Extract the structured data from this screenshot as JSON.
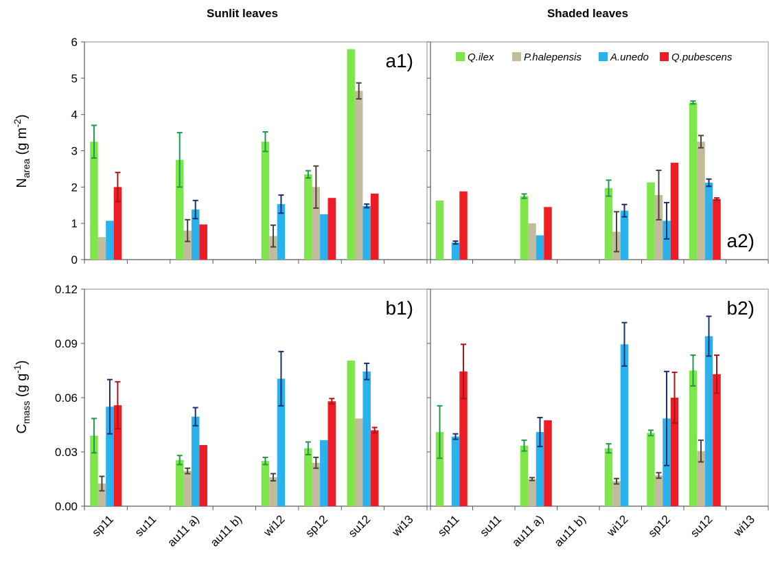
{
  "chart_data": {
    "type": "bar",
    "column_titles": [
      "Sunlit leaves",
      "Shaded leaves"
    ],
    "categories": [
      "sp11",
      "su11",
      "au11 a)",
      "au11 b)",
      "wi12",
      "sp12",
      "su12",
      "wi13"
    ],
    "legend": {
      "placement": "top-right of panel a2",
      "entries": [
        "Q.ilex",
        "P.halepensis",
        "A.unedo",
        "Q.pubescens"
      ]
    },
    "colors": {
      "Q.ilex": "#7ee64a",
      "P.halepensis": "#c2bc9c",
      "A.unedo": "#2ab2ec",
      "Q.pubescens": "#ee1c24",
      "Q.ilex_err": "#1a9a4a",
      "P.halepensis_err": "#4a4438",
      "A.unedo_err": "#1a2f6e",
      "Q.pubescens_err": "#b01018"
    },
    "rows": [
      {
        "ylabel": {
          "base": "N",
          "sub": "area",
          "unit_pre": " (g m",
          "sup": "-2",
          "unit_post": ")"
        },
        "ylim": [
          0,
          6
        ],
        "yticks": [
          "0",
          "1",
          "2",
          "3",
          "4",
          "5",
          "6"
        ],
        "panels": [
          {
            "label": "a1)",
            "label_pos": "top-right",
            "series": [
              {
                "name": "Q.ilex",
                "values": [
                  3.25,
                  null,
                  2.75,
                  null,
                  3.25,
                  2.35,
                  5.8,
                  null
                ],
                "err": [
                  0.45,
                  null,
                  0.75,
                  null,
                  0.27,
                  0.1,
                  0,
                  null
                ]
              },
              {
                "name": "P.halepensis",
                "values": [
                  0.62,
                  null,
                  0.8,
                  null,
                  0.65,
                  2.0,
                  4.65,
                  null
                ],
                "err": [
                  0,
                  null,
                  0.3,
                  null,
                  0.3,
                  0.58,
                  0.22,
                  null
                ]
              },
              {
                "name": "A.unedo",
                "values": [
                  1.07,
                  null,
                  1.38,
                  null,
                  1.53,
                  1.25,
                  1.48,
                  null
                ],
                "err": [
                  0,
                  null,
                  0.25,
                  null,
                  0.25,
                  0,
                  0.05,
                  null
                ]
              },
              {
                "name": "Q.pubescens",
                "values": [
                  2.0,
                  null,
                  0.97,
                  null,
                  null,
                  1.7,
                  1.82,
                  null
                ],
                "err": [
                  0.4,
                  null,
                  0,
                  null,
                  null,
                  0,
                  0,
                  null
                ]
              }
            ]
          },
          {
            "label": "a2)",
            "label_pos": "bottom-right",
            "series": [
              {
                "name": "Q.ilex",
                "values": [
                  1.63,
                  null,
                  1.75,
                  null,
                  1.97,
                  2.13,
                  4.33,
                  null
                ],
                "err": [
                  0,
                  null,
                  0.06,
                  null,
                  0.22,
                  0,
                  0.04,
                  null
                ]
              },
              {
                "name": "P.halepensis",
                "values": [
                  null,
                  null,
                  1.0,
                  null,
                  0.77,
                  1.78,
                  3.25,
                  null
                ],
                "err": [
                  null,
                  null,
                  0,
                  null,
                  0.55,
                  0.68,
                  0.17,
                  null
                ]
              },
              {
                "name": "A.unedo",
                "values": [
                  0.47,
                  null,
                  0.67,
                  null,
                  1.35,
                  1.07,
                  2.12,
                  null
                ],
                "err": [
                  0.04,
                  null,
                  0,
                  null,
                  0.17,
                  0.5,
                  0.1,
                  null
                ]
              },
              {
                "name": "Q.pubescens",
                "values": [
                  1.88,
                  null,
                  1.45,
                  null,
                  null,
                  2.67,
                  1.67,
                  null
                ],
                "err": [
                  0,
                  null,
                  0,
                  null,
                  null,
                  0,
                  0.03,
                  null
                ]
              }
            ]
          }
        ]
      },
      {
        "ylabel": {
          "base": "C",
          "sub": "mass",
          "unit_pre": " (g g",
          "sup": "-1",
          "unit_post": ")"
        },
        "ylim": [
          0,
          0.12
        ],
        "yticks": [
          "0.00",
          "0.03",
          "0.06",
          "0.09",
          "0.12"
        ],
        "panels": [
          {
            "label": "b1)",
            "label_pos": "top-right",
            "series": [
              {
                "name": "Q.ilex",
                "values": [
                  0.039,
                  null,
                  0.0255,
                  null,
                  0.025,
                  0.032,
                  0.0805,
                  null
                ],
                "err": [
                  0.0095,
                  null,
                  0.0025,
                  null,
                  0.002,
                  0.0035,
                  0,
                  null
                ]
              },
              {
                "name": "P.halepensis",
                "values": [
                  0.0125,
                  null,
                  0.0195,
                  null,
                  0.016,
                  0.024,
                  0.0485,
                  null
                ],
                "err": [
                  0.004,
                  null,
                  0.0015,
                  null,
                  0.002,
                  0.003,
                  0,
                  null
                ]
              },
              {
                "name": "A.unedo",
                "values": [
                  0.055,
                  null,
                  0.0495,
                  null,
                  0.0705,
                  0.0365,
                  0.0745,
                  null
                ],
                "err": [
                  0.015,
                  null,
                  0.005,
                  null,
                  0.015,
                  0,
                  0.0045,
                  null
                ]
              },
              {
                "name": "Q.pubescens",
                "values": [
                  0.0558,
                  null,
                  0.0338,
                  null,
                  null,
                  0.058,
                  0.042,
                  null
                ],
                "err": [
                  0.013,
                  null,
                  0,
                  null,
                  null,
                  0.0015,
                  0.0015,
                  null
                ]
              }
            ]
          },
          {
            "label": "b2)",
            "label_pos": "top-right",
            "series": [
              {
                "name": "Q.ilex",
                "values": [
                  0.041,
                  null,
                  0.0335,
                  null,
                  0.032,
                  0.0405,
                  0.075,
                  null
                ],
                "err": [
                  0.0145,
                  null,
                  0.003,
                  null,
                  0.0025,
                  0.0015,
                  0.0085,
                  null
                ]
              },
              {
                "name": "P.halepensis",
                "values": [
                  null,
                  null,
                  0.015,
                  null,
                  0.0138,
                  0.017,
                  0.0305,
                  null
                ],
                "err": [
                  null,
                  null,
                  0.0008,
                  null,
                  0.0015,
                  0.0015,
                  0.006,
                  null
                ]
              },
              {
                "name": "A.unedo",
                "values": [
                  0.0385,
                  null,
                  0.041,
                  null,
                  0.0895,
                  0.0485,
                  0.094,
                  null
                ],
                "err": [
                  0.0015,
                  null,
                  0.008,
                  null,
                  0.012,
                  0.026,
                  0.011,
                  null
                ]
              },
              {
                "name": "Q.pubescens",
                "values": [
                  0.0745,
                  null,
                  0.0475,
                  null,
                  null,
                  0.06,
                  0.073,
                  null
                ],
                "err": [
                  0.015,
                  null,
                  0,
                  null,
                  null,
                  0.014,
                  0.0105,
                  null
                ]
              }
            ]
          }
        ]
      }
    ]
  }
}
